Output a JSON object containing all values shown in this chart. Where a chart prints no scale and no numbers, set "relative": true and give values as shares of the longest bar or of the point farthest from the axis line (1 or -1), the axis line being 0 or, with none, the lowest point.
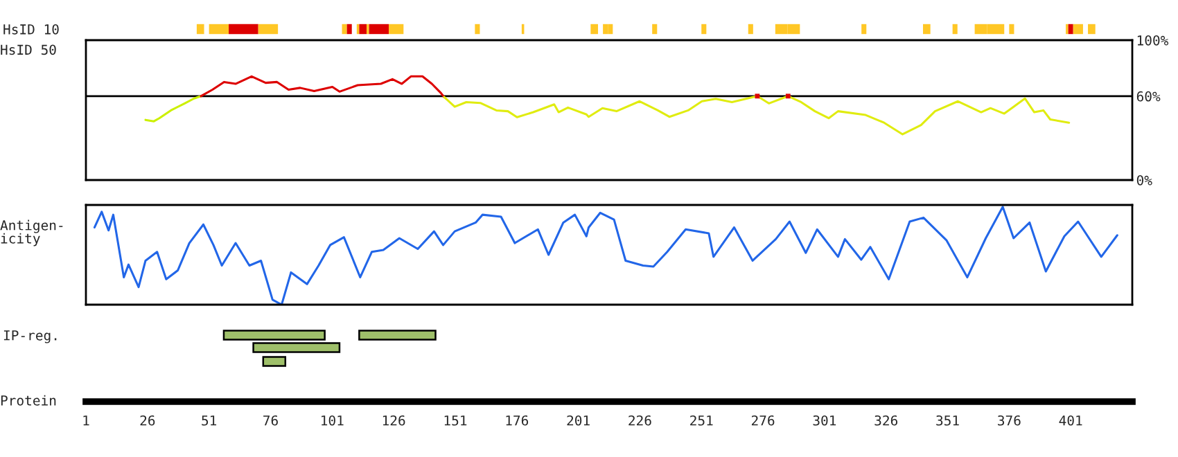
{
  "chart_data": [
    {
      "type": "bar",
      "orientation": "horizontal",
      "categories": [
        "HsID 10"
      ],
      "xlim": [
        1,
        426
      ],
      "tick_labels": "y",
      "series": [
        {
          "color": "#ffc726",
          "values": [
            3
          ],
          "base": [
            46
          ]
        },
        {
          "color": "#ffc726",
          "values": [
            8
          ],
          "base": [
            51
          ]
        },
        {
          "color": "#dd0000",
          "values": [
            12
          ],
          "base": [
            59
          ]
        },
        {
          "color": "#ffc726",
          "values": [
            8
          ],
          "base": [
            71
          ]
        },
        {
          "color": "#ffc726",
          "values": [
            2
          ],
          "base": [
            105
          ]
        },
        {
          "color": "#dd0000",
          "values": [
            2
          ],
          "base": [
            107
          ]
        },
        {
          "color": "#ffc726",
          "values": [
            1
          ],
          "base": [
            111
          ]
        },
        {
          "color": "#dd0000",
          "values": [
            3
          ],
          "base": [
            112
          ]
        },
        {
          "color": "#ffc726",
          "values": [
            1
          ],
          "base": [
            115
          ]
        },
        {
          "color": "#dd0000",
          "values": [
            8
          ],
          "base": [
            116
          ]
        },
        {
          "color": "#ffc726",
          "values": [
            6
          ],
          "base": [
            124
          ]
        },
        {
          "color": "#ffc726",
          "values": [
            2
          ],
          "base": [
            159
          ]
        },
        {
          "color": "#ffc726",
          "values": [
            1
          ],
          "base": [
            178
          ]
        },
        {
          "color": "#ffc726",
          "values": [
            3
          ],
          "base": [
            206
          ]
        },
        {
          "color": "#ffc726",
          "values": [
            2
          ],
          "base": [
            211
          ]
        },
        {
          "color": "#ffc726",
          "values": [
            2
          ],
          "base": [
            213
          ]
        },
        {
          "color": "#ffc726",
          "values": [
            2
          ],
          "base": [
            231
          ]
        },
        {
          "color": "#ffc726",
          "values": [
            2
          ],
          "base": [
            251
          ]
        },
        {
          "color": "#ffc726",
          "values": [
            2
          ],
          "base": [
            270
          ]
        },
        {
          "color": "#ffc726",
          "values": [
            5
          ],
          "base": [
            281
          ]
        },
        {
          "color": "#ffc726",
          "values": [
            5
          ],
          "base": [
            286
          ]
        },
        {
          "color": "#ffc726",
          "values": [
            2
          ],
          "base": [
            316
          ]
        },
        {
          "color": "#ffc726",
          "values": [
            3
          ],
          "base": [
            341
          ]
        },
        {
          "color": "#ffc726",
          "values": [
            2
          ],
          "base": [
            353
          ]
        },
        {
          "color": "#ffc726",
          "values": [
            5
          ],
          "base": [
            362
          ]
        },
        {
          "color": "#ffc726",
          "values": [
            7
          ],
          "base": [
            367
          ]
        },
        {
          "color": "#ffc726",
          "values": [
            2
          ],
          "base": [
            376
          ]
        },
        {
          "color": "#ffc726",
          "values": [
            1
          ],
          "base": [
            399
          ]
        },
        {
          "color": "#dd0000",
          "values": [
            2
          ],
          "base": [
            400
          ]
        },
        {
          "color": "#ffc726",
          "values": [
            4
          ],
          "base": [
            402
          ]
        },
        {
          "color": "#ffc726",
          "values": [
            3
          ],
          "base": [
            408
          ]
        }
      ]
    },
    {
      "type": "line",
      "ylabel": "HsID 50",
      "xlim": [
        1,
        426
      ],
      "ylim": [
        0,
        100
      ],
      "yticks": [
        {
          "value": 0,
          "label": "0%"
        },
        {
          "value": 60,
          "label": "60%"
        },
        {
          "value": 100,
          "label": "100%"
        }
      ],
      "tick_labels": "y",
      "ref_lines": [
        {
          "axis": "y",
          "value": 60,
          "color": "#000000"
        }
      ],
      "series": [
        {
          "color": "#ccf000",
          "x": [
            25.2,
            28.6,
            30.8,
            35.5,
            41.1,
            44.9,
            47.7
          ],
          "values": [
            43.0,
            42.0,
            44.2,
            49.8,
            54.8,
            58.3,
            60.0
          ]
        },
        {
          "color": "#dd0000",
          "x": [
            47.7,
            52.4,
            57.1,
            61.8,
            68.3,
            74.0,
            78.6,
            83.3,
            88.0,
            93.7,
            101.1,
            104.0,
            111.4,
            120.8,
            125.5,
            129.3,
            133.0,
            137.7,
            141.5,
            145.2,
            146.5
          ],
          "values": [
            60.0,
            64.6,
            70.1,
            68.8,
            74.1,
            69.5,
            70.1,
            64.6,
            65.9,
            63.6,
            66.6,
            63.2,
            67.8,
            68.8,
            72.1,
            68.8,
            74.1,
            74.1,
            68.8,
            62.2,
            59.3
          ]
        },
        {
          "color": "#e0ec10",
          "x": [
            146.5,
            150.8,
            155.5,
            161.2,
            167.7,
            172.4,
            176.1,
            182.7,
            191.2,
            193.0,
            196.8,
            204.3,
            205.2,
            210.8,
            216.5,
            225.9,
            233.3,
            238.0,
            245.6,
            251.2,
            256.8,
            263.4,
            273.7,
            278.4,
            286.2,
            291.5,
            297.1,
            302.7,
            306.5,
            317.7,
            325.2,
            332.7,
            340.2,
            345.9,
            355.2,
            364.6,
            368.4,
            374.0,
            377.8,
            382.4,
            386.2,
            389.9,
            392.7,
            400.3
          ],
          "values": [
            59.3,
            52.4,
            55.7,
            55.1,
            49.8,
            49.2,
            44.9,
            48.5,
            54.1,
            48.5,
            51.8,
            46.9,
            45.2,
            51.4,
            49.2,
            56.3,
            49.8,
            45.2,
            49.8,
            56.3,
            58.0,
            55.7,
            60.0,
            54.8,
            60.0,
            55.7,
            49.2,
            44.2,
            49.2,
            46.5,
            41.0,
            32.7,
            39.3,
            49.2,
            56.3,
            48.5,
            51.4,
            47.5,
            52.4,
            58.3,
            48.5,
            49.8,
            43.3,
            41.0
          ]
        },
        {
          "type": "scatter",
          "color": "#dd0000",
          "marker": "square",
          "x": [
            273.7,
            286.2
          ],
          "values": [
            60.0,
            60.0
          ]
        }
      ]
    },
    {
      "type": "line",
      "relative": true,
      "ylabel": "Antigen-\nicity",
      "xlim": [
        1,
        426
      ],
      "tick_labels": false,
      "series": [
        {
          "color": "#2266e8",
          "x": [
            4.5,
            7.4,
            10.2,
            12.1,
            16.4,
            18.3,
            22.4,
            25.2,
            29.9,
            33.6,
            38.3,
            43.0,
            48.7,
            52.8,
            56.2,
            61.8,
            67.4,
            72.1,
            76.8,
            80.5,
            84.3,
            90.8,
            95.5,
            100.2,
            105.8,
            112.4,
            117.1,
            121.8,
            128.3,
            135.8,
            142.4,
            146.1,
            150.8,
            159.3,
            162.1,
            169.6,
            175.2,
            184.6,
            188.9,
            194.9,
            199.6,
            204.3,
            205.2,
            209.9,
            215.5,
            220.2,
            227.3,
            231.5,
            237.1,
            244.6,
            254.0,
            255.9,
            264.3,
            271.8,
            281.2,
            286.8,
            293.4,
            298.0,
            306.5,
            309.3,
            315.9,
            319.6,
            327.1,
            335.6,
            341.2,
            350.5,
            359.0,
            366.5,
            373.4,
            377.8,
            384.3,
            390.9,
            398.4,
            404.0,
            413.4,
            419.9
          ],
          "values": [
            0.79,
            0.95,
            0.76,
            0.92,
            0.28,
            0.41,
            0.18,
            0.45,
            0.54,
            0.26,
            0.35,
            0.63,
            0.82,
            0.61,
            0.4,
            0.63,
            0.4,
            0.45,
            0.05,
            0.0,
            0.33,
            0.21,
            0.4,
            0.61,
            0.69,
            0.28,
            0.54,
            0.56,
            0.68,
            0.57,
            0.75,
            0.61,
            0.75,
            0.84,
            0.92,
            0.9,
            0.63,
            0.77,
            0.51,
            0.84,
            0.92,
            0.7,
            0.79,
            0.94,
            0.87,
            0.45,
            0.4,
            0.39,
            0.54,
            0.77,
            0.73,
            0.49,
            0.79,
            0.45,
            0.67,
            0.85,
            0.53,
            0.77,
            0.49,
            0.67,
            0.46,
            0.59,
            0.26,
            0.85,
            0.89,
            0.66,
            0.28,
            0.68,
            1.0,
            0.68,
            0.84,
            0.34,
            0.7,
            0.85,
            0.49,
            0.71
          ]
        }
      ]
    },
    {
      "type": "bar",
      "orientation": "horizontal",
      "categories": [
        "IP-reg."
      ],
      "xlim": [
        1,
        426
      ],
      "tick_labels": "y",
      "series": [
        {
          "color": "#9fc06a",
          "values": [
            41
          ],
          "base": [
            57
          ]
        },
        {
          "color": "#9fc06a",
          "values": [
            31
          ],
          "base": [
            112
          ]
        }
      ]
    },
    {
      "type": "bar",
      "orientation": "horizontal",
      "xlabel": "Protein",
      "categories": [
        null,
        null
      ],
      "xlim": [
        1,
        426
      ],
      "xticks": [
        1,
        26,
        51,
        76,
        101,
        126,
        151,
        176,
        201,
        226,
        251,
        276,
        301,
        326,
        351,
        376,
        401
      ],
      "tick_labels": "x",
      "series": [
        {
          "color": "#9fc06a",
          "values": [
            35,
            9
          ],
          "base": [
            69,
            73
          ]
        }
      ]
    }
  ]
}
